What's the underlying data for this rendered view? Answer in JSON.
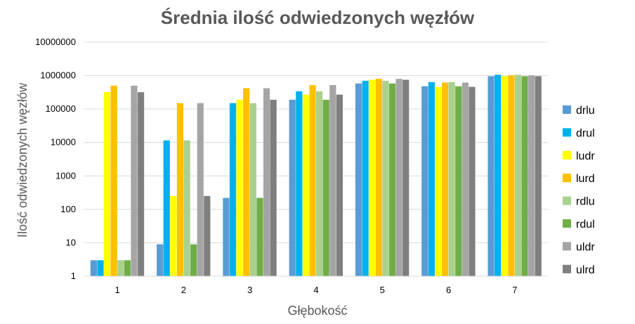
{
  "chart_data": {
    "type": "bar",
    "title": "Średnia ilość odwiedzonych węzłów",
    "xlabel": "Głębokość",
    "ylabel": "Ilość odwiedzonych węzłów",
    "yscale": "log",
    "ylim": [
      1,
      10000000
    ],
    "yticks": [
      "1",
      "10",
      "100",
      "1000",
      "10000",
      "100000",
      "1000000",
      "10000000"
    ],
    "grid": true,
    "legend_position": "right",
    "categories": [
      "1",
      "2",
      "3",
      "4",
      "5",
      "6",
      "7"
    ],
    "series": [
      {
        "name": "drlu",
        "color": "#5B9BD5",
        "values": [
          3,
          9,
          220,
          190000,
          580000,
          480000,
          960000
        ]
      },
      {
        "name": "drul",
        "color": "#00B0F0",
        "values": [
          3,
          11500,
          150000,
          340000,
          700000,
          640000,
          1060000
        ]
      },
      {
        "name": "ludr",
        "color": "#FFFF00",
        "values": [
          320000,
          250,
          190000,
          270000,
          750000,
          460000,
          960000
        ]
      },
      {
        "name": "lurd",
        "color": "#FFC000",
        "values": [
          500000,
          150000,
          420000,
          520000,
          800000,
          620000,
          1020000
        ]
      },
      {
        "name": "rdlu",
        "color": "#A9D18E",
        "values": [
          3,
          11500,
          150000,
          340000,
          700000,
          640000,
          1060000
        ]
      },
      {
        "name": "rdul",
        "color": "#70AD47",
        "values": [
          3,
          9,
          220,
          190000,
          580000,
          480000,
          960000
        ]
      },
      {
        "name": "uldr",
        "color": "#A5A5A5",
        "values": [
          500000,
          150000,
          420000,
          520000,
          800000,
          620000,
          1020000
        ]
      },
      {
        "name": "ulrd",
        "color": "#7F7F7F",
        "values": [
          320000,
          250,
          190000,
          270000,
          750000,
          460000,
          960000
        ]
      }
    ]
  }
}
